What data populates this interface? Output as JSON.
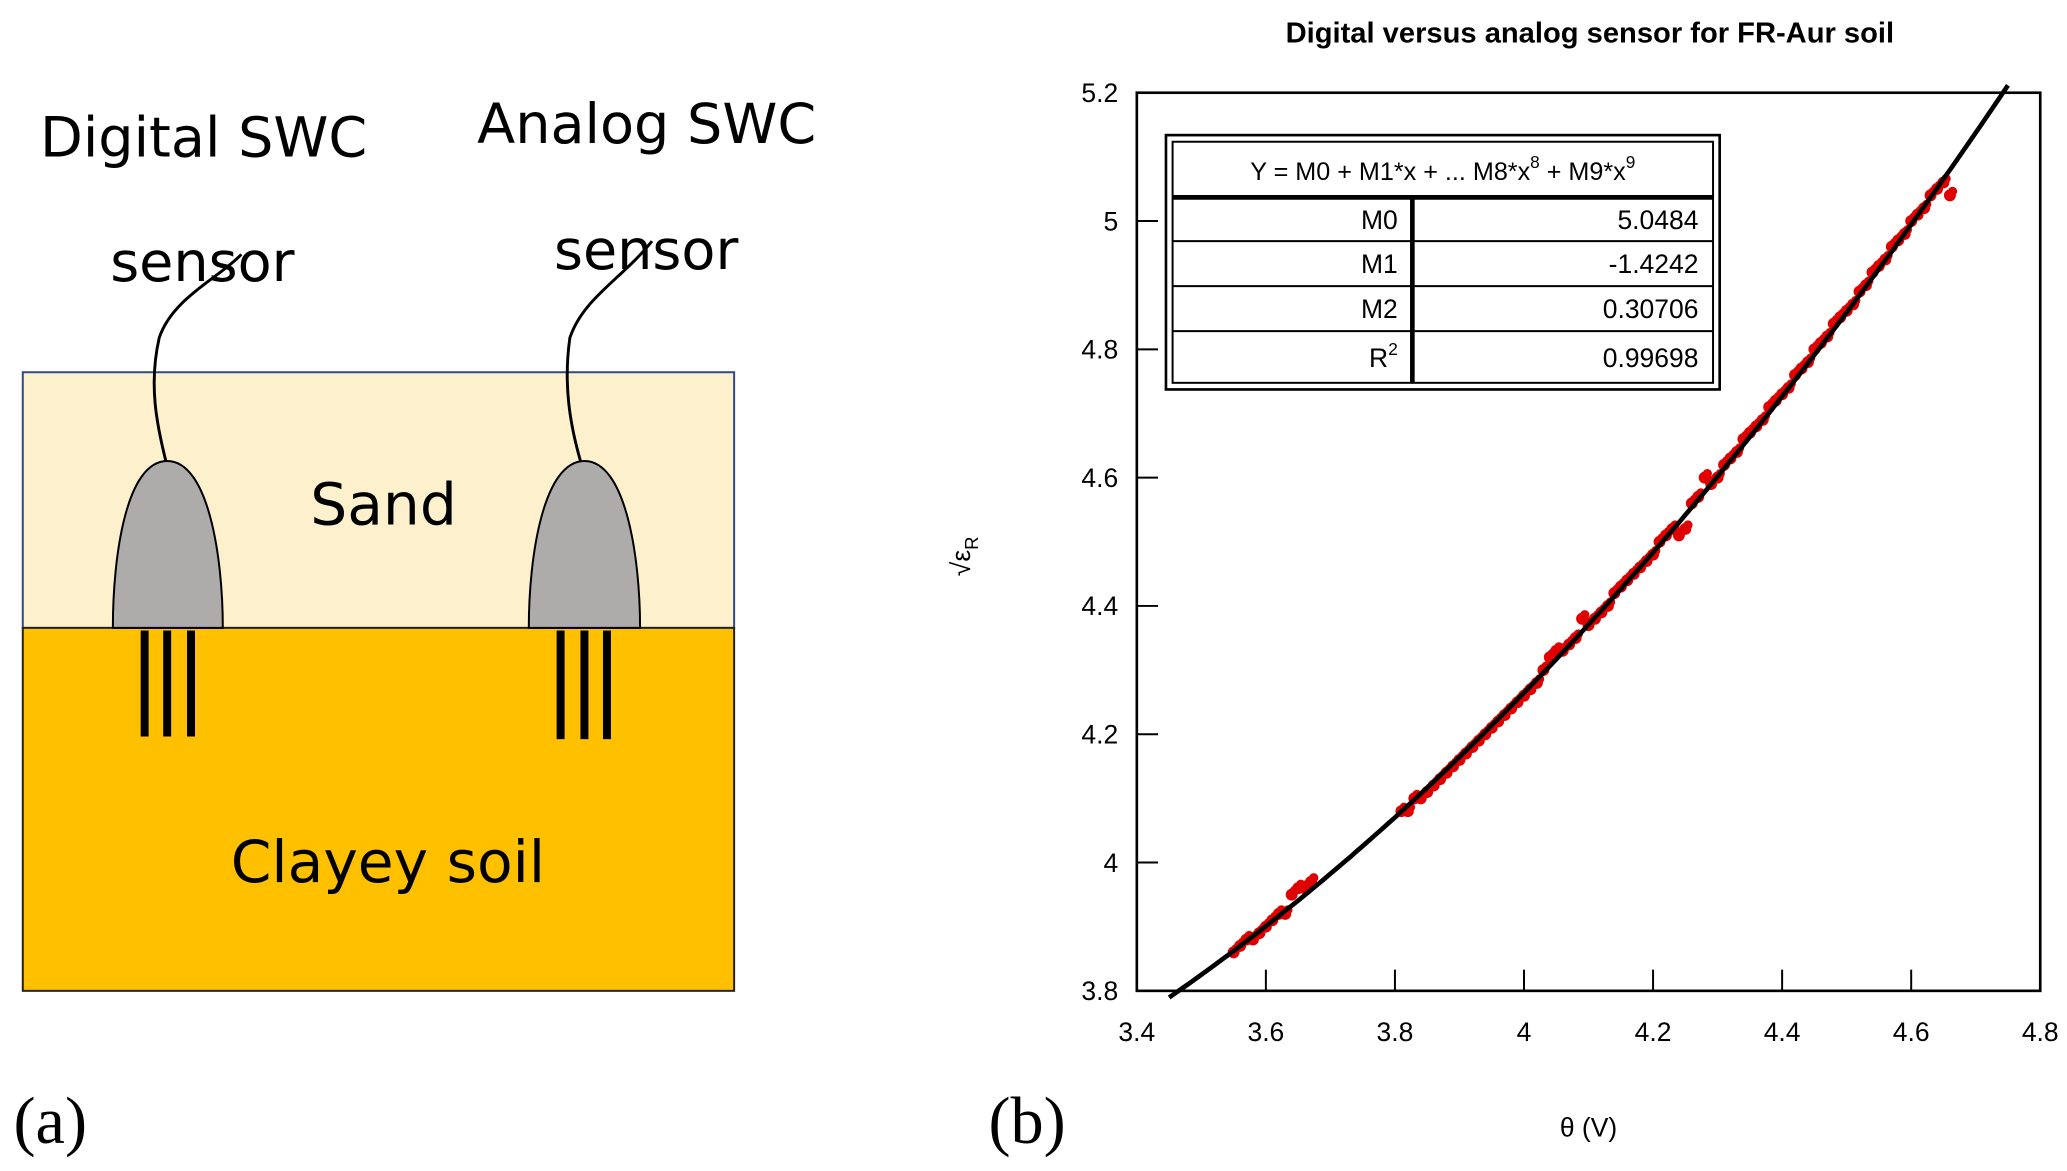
{
  "panel_a": {
    "label": "(a)",
    "digital_label": "Digital SWC",
    "digital_sub": "sensor",
    "analog_label": "Analog SWC",
    "analog_sub": "sensor",
    "sand_label": "Sand",
    "clay_label": "Clayey soil",
    "colors": {
      "sand": "#FDF0CD",
      "clay": "#FFC000",
      "sensor": "#AEABAB",
      "sand_border": "#2F4A8A"
    }
  },
  "panel_b": {
    "label": "(b)"
  },
  "chart_data": {
    "type": "scatter",
    "title": "Digital versus analog sensor for FR-Aur soil",
    "xlabel": "θ (V)",
    "ylabel": "√ε",
    "ylabel_sub": "R",
    "xlim": [
      3.4,
      4.8
    ],
    "ylim": [
      3.8,
      5.2
    ],
    "xticks": [
      "3.4",
      "3.6",
      "3.8",
      "4",
      "4.2",
      "4.4",
      "4.6",
      "4.8"
    ],
    "yticks": [
      "3.8",
      "4",
      "4.2",
      "4.4",
      "4.6",
      "4.8",
      "5",
      "5.2"
    ],
    "grid": false,
    "points_color": "#E00000",
    "fit_color": "#000000",
    "fit_x_range": [
      3.45,
      4.75
    ],
    "points": {
      "x": [
        3.55,
        3.56,
        3.57,
        3.58,
        3.59,
        3.6,
        3.61,
        3.62,
        3.63,
        3.64,
        3.65,
        3.66,
        3.67,
        3.81,
        3.82,
        3.83,
        3.84,
        3.85,
        3.86,
        3.87,
        3.88,
        3.89,
        3.9,
        3.91,
        3.92,
        3.93,
        3.94,
        3.95,
        3.96,
        3.97,
        3.98,
        3.99,
        4.0,
        4.01,
        4.02,
        4.03,
        4.04,
        4.05,
        4.06,
        4.07,
        4.08,
        4.09,
        4.1,
        4.11,
        4.12,
        4.13,
        4.14,
        4.15,
        4.16,
        4.17,
        4.18,
        4.19,
        4.2,
        4.21,
        4.22,
        4.23,
        4.24,
        4.25,
        4.26,
        4.27,
        4.28,
        4.29,
        4.3,
        4.31,
        4.32,
        4.33,
        4.34,
        4.35,
        4.36,
        4.37,
        4.38,
        4.39,
        4.4,
        4.41,
        4.42,
        4.43,
        4.44,
        4.45,
        4.46,
        4.47,
        4.48,
        4.49,
        4.5,
        4.51,
        4.52,
        4.53,
        4.54,
        4.55,
        4.56,
        4.57,
        4.58,
        4.59,
        4.6,
        4.61,
        4.62,
        4.63,
        4.64,
        4.65,
        4.66
      ],
      "y": [
        3.86,
        3.87,
        3.88,
        3.88,
        3.89,
        3.9,
        3.91,
        3.92,
        3.92,
        3.95,
        3.96,
        3.96,
        3.97,
        4.08,
        4.08,
        4.1,
        4.1,
        4.11,
        4.12,
        4.13,
        4.14,
        4.15,
        4.16,
        4.17,
        4.18,
        4.19,
        4.2,
        4.21,
        4.22,
        4.23,
        4.24,
        4.25,
        4.26,
        4.27,
        4.28,
        4.3,
        4.32,
        4.33,
        4.33,
        4.34,
        4.35,
        4.38,
        4.37,
        4.38,
        4.39,
        4.4,
        4.42,
        4.43,
        4.44,
        4.45,
        4.46,
        4.47,
        4.48,
        4.5,
        4.51,
        4.52,
        4.51,
        4.52,
        4.56,
        4.57,
        4.6,
        4.59,
        4.6,
        4.62,
        4.63,
        4.64,
        4.66,
        4.67,
        4.68,
        4.69,
        4.71,
        4.72,
        4.73,
        4.74,
        4.76,
        4.77,
        4.78,
        4.8,
        4.81,
        4.82,
        4.84,
        4.85,
        4.86,
        4.87,
        4.89,
        4.9,
        4.92,
        4.93,
        4.94,
        4.96,
        4.97,
        4.98,
        5.0,
        5.01,
        5.02,
        5.04,
        5.05,
        5.06,
        5.04
      ]
    },
    "fit_table": {
      "equation": "Y = M0 + M1*x + ... M8*x",
      "eq_sup1": "8",
      "eq_mid": " + M9*x",
      "eq_sup2": "9",
      "rows": [
        {
          "name": "M0",
          "value": "5.0484"
        },
        {
          "name": "M1",
          "value": "-1.4242"
        },
        {
          "name": "M2",
          "value": "0.30706"
        },
        {
          "name": "R",
          "sup": "2",
          "value": "0.99698"
        }
      ]
    }
  }
}
